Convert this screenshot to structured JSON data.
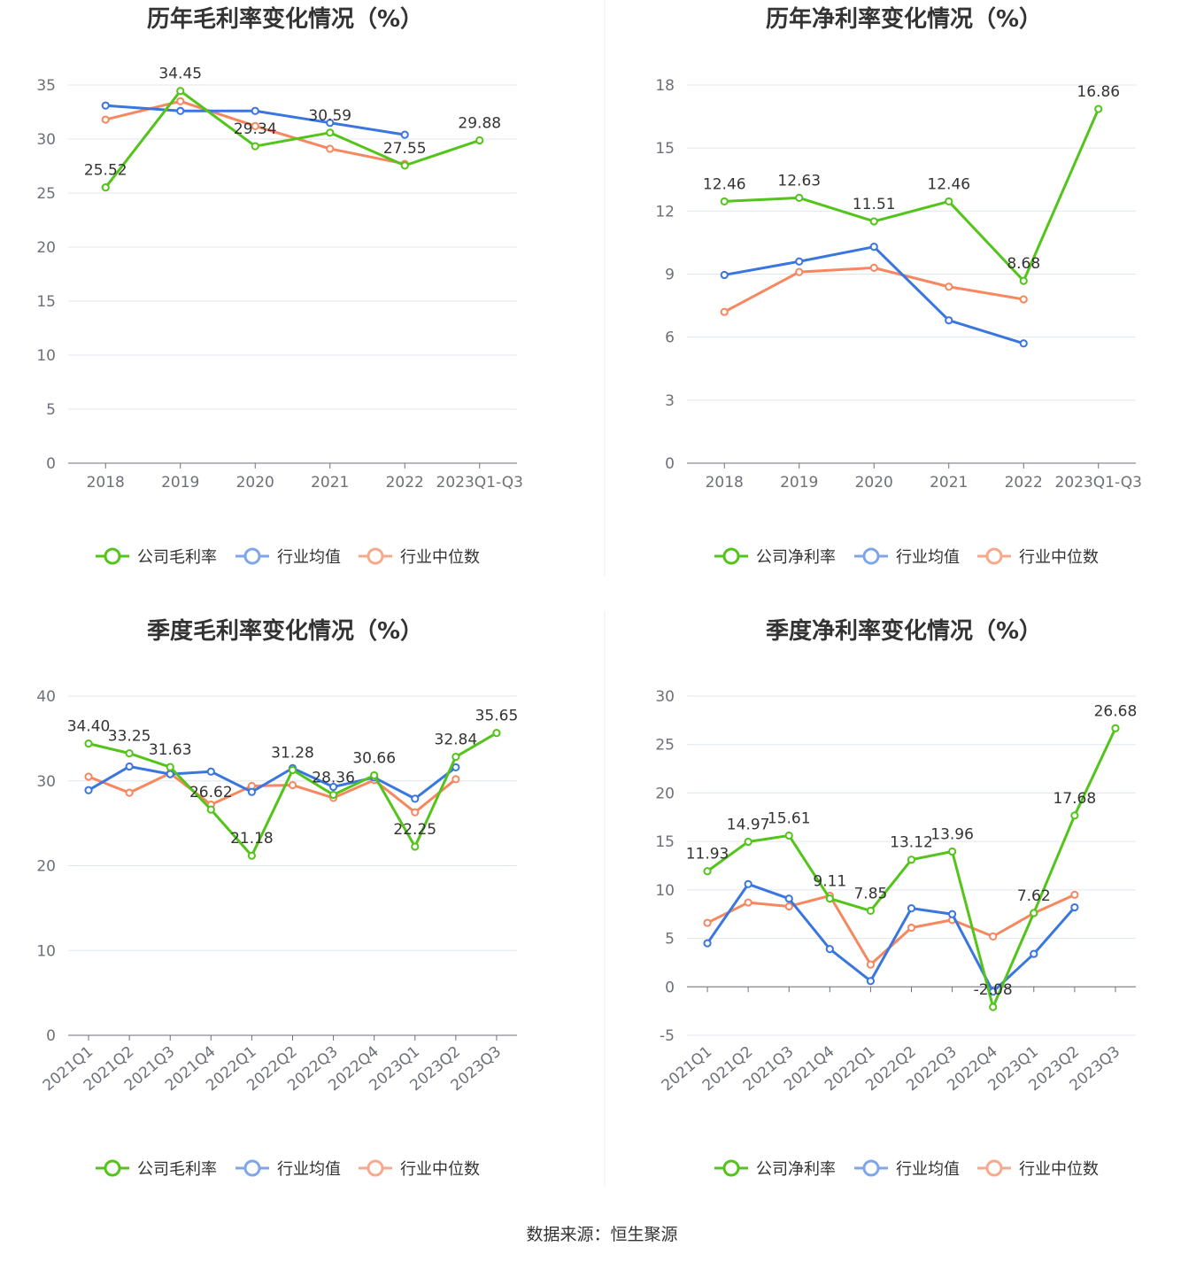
{
  "colors": {
    "company": "#52c41a",
    "avg": "#3a76e0",
    "median": "#f6875f"
  },
  "legend": {
    "gross": [
      "公司毛利率",
      "行业均值",
      "行业中位数"
    ],
    "net": [
      "公司净利率",
      "行业均值",
      "行业中位数"
    ]
  },
  "footer": "数据来源：恒生聚源",
  "chart_data": [
    {
      "id": "annual-gross",
      "type": "line",
      "title": "历年毛利率变化情况（%）",
      "categories": [
        "2018",
        "2019",
        "2020",
        "2021",
        "2022",
        "2023Q1-Q3"
      ],
      "ylim": [
        0,
        35
      ],
      "yticks": [
        0,
        5,
        10,
        15,
        20,
        25,
        30,
        35
      ],
      "rotate_labels": false,
      "legend_key": "gross",
      "series": [
        {
          "name": "公司毛利率",
          "values": [
            25.52,
            34.45,
            29.34,
            30.59,
            27.55,
            29.88
          ],
          "labels": [
            "25.52",
            "34.45",
            "29.34",
            "30.59",
            "27.55",
            "29.88"
          ]
        },
        {
          "name": "行业均值",
          "values": [
            33.1,
            32.6,
            32.6,
            31.5,
            30.4,
            null
          ]
        },
        {
          "name": "行业中位数",
          "values": [
            31.8,
            33.5,
            31.2,
            29.1,
            27.7,
            null
          ]
        }
      ]
    },
    {
      "id": "annual-net",
      "type": "line",
      "title": "历年净利率变化情况（%）",
      "categories": [
        "2018",
        "2019",
        "2020",
        "2021",
        "2022",
        "2023Q1-Q3"
      ],
      "ylim": [
        0,
        18
      ],
      "yticks": [
        0,
        3,
        6,
        9,
        12,
        15,
        18
      ],
      "rotate_labels": false,
      "legend_key": "net",
      "series": [
        {
          "name": "公司净利率",
          "values": [
            12.46,
            12.63,
            11.51,
            12.46,
            8.68,
            16.86
          ],
          "labels": [
            "12.46",
            "12.63",
            "11.51",
            "12.46",
            "8.68",
            "16.86"
          ]
        },
        {
          "name": "行业均值",
          "values": [
            8.96,
            9.6,
            10.3,
            6.8,
            5.7,
            null
          ]
        },
        {
          "name": "行业中位数",
          "values": [
            7.2,
            9.1,
            9.3,
            8.4,
            7.8,
            null
          ]
        }
      ]
    },
    {
      "id": "quarterly-gross",
      "type": "line",
      "title": "季度毛利率变化情况（%）",
      "categories": [
        "2021Q1",
        "2021Q2",
        "2021Q3",
        "2021Q4",
        "2022Q1",
        "2022Q2",
        "2022Q3",
        "2022Q4",
        "2023Q1",
        "2023Q2",
        "2023Q3"
      ],
      "ylim": [
        0,
        40
      ],
      "yticks": [
        0,
        10,
        20,
        30,
        40
      ],
      "rotate_labels": true,
      "legend_key": "gross",
      "series": [
        {
          "name": "公司毛利率",
          "values": [
            34.4,
            33.25,
            31.63,
            26.62,
            21.18,
            31.28,
            28.36,
            30.66,
            22.25,
            32.84,
            35.65
          ],
          "labels": [
            "34.40",
            "33.25",
            "31.63",
            "26.62",
            "21.18",
            "31.28",
            "28.36",
            "30.66",
            "22.25",
            "32.84",
            "35.65"
          ]
        },
        {
          "name": "行业均值",
          "values": [
            28.9,
            31.7,
            30.8,
            31.1,
            28.7,
            31.5,
            29.3,
            30.4,
            27.9,
            31.6,
            null
          ]
        },
        {
          "name": "行业中位数",
          "values": [
            30.5,
            28.6,
            30.9,
            27.2,
            29.4,
            29.5,
            28.0,
            30.1,
            26.3,
            30.2,
            null
          ]
        }
      ]
    },
    {
      "id": "quarterly-net",
      "type": "line",
      "title": "季度净利率变化情况（%）",
      "categories": [
        "2021Q1",
        "2021Q2",
        "2021Q3",
        "2021Q4",
        "2022Q1",
        "2022Q2",
        "2022Q3",
        "2022Q4",
        "2023Q1",
        "2023Q2",
        "2023Q3"
      ],
      "ylim": [
        -5,
        30
      ],
      "yticks": [
        -5,
        0,
        5,
        10,
        15,
        20,
        25,
        30
      ],
      "rotate_labels": true,
      "legend_key": "net",
      "series": [
        {
          "name": "公司净利率",
          "values": [
            11.93,
            14.97,
            15.61,
            9.11,
            7.85,
            13.12,
            13.96,
            -2.08,
            7.62,
            17.68,
            26.68
          ],
          "labels": [
            "11.93",
            "14.97",
            "15.61",
            "9.11",
            "7.85",
            "13.12",
            "13.96",
            "-2.08",
            "7.62",
            "17.68",
            "26.68"
          ]
        },
        {
          "name": "行业均值",
          "values": [
            4.5,
            10.6,
            9.1,
            3.9,
            0.6,
            8.1,
            7.5,
            -0.5,
            3.4,
            8.2,
            null
          ]
        },
        {
          "name": "行业中位数",
          "values": [
            6.6,
            8.7,
            8.3,
            9.4,
            2.3,
            6.1,
            6.9,
            5.2,
            7.6,
            9.5,
            null
          ]
        }
      ]
    }
  ]
}
